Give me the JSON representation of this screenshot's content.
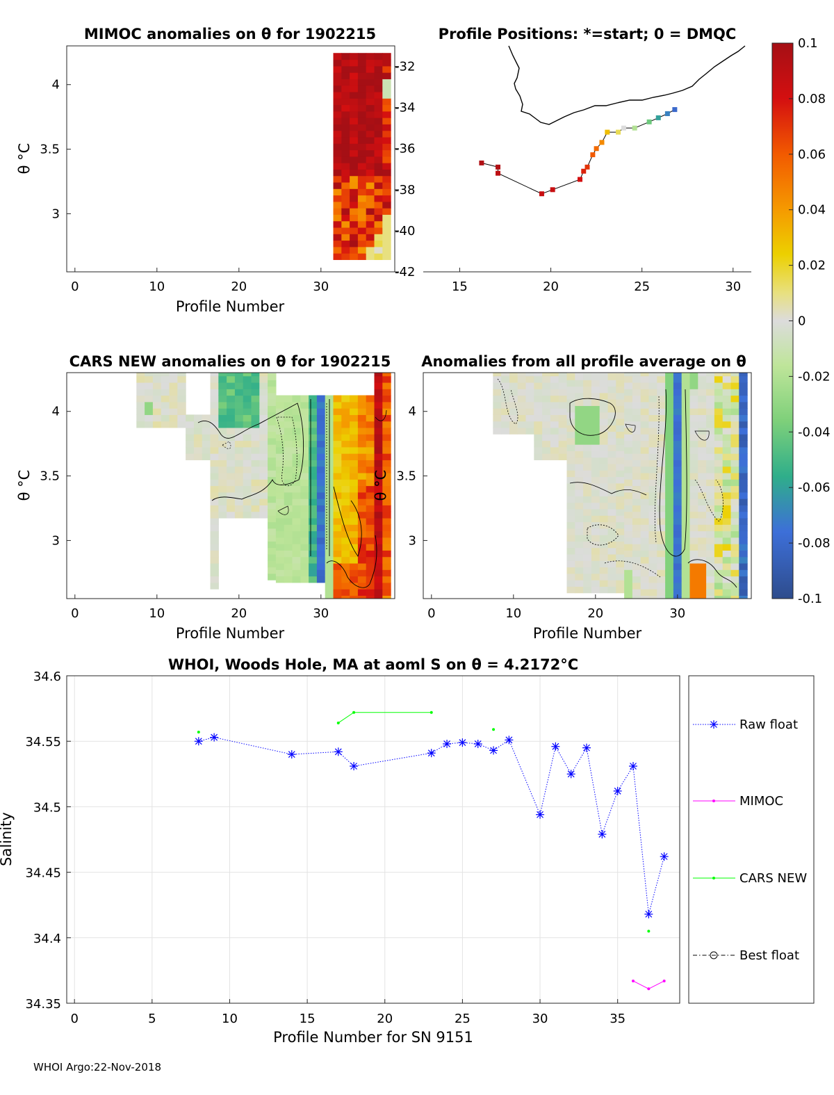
{
  "chart_data": [
    {
      "type": "heatmap",
      "title": "MIMOC anomalies on θ  for 1902215",
      "xlabel": "Profile Number",
      "ylabel": "θ °C",
      "xlim": [
        -1,
        39
      ],
      "ylim": [
        2.55,
        4.3
      ],
      "xticks": [
        0,
        10,
        20,
        30
      ],
      "yticks": [
        3,
        3.5,
        4
      ],
      "profile_range": [
        32,
        38
      ],
      "theta_range": [
        2.67,
        4.22
      ]
    },
    {
      "type": "scatter",
      "title": "Profile Positions: *=start; 0 = DMQC",
      "xlim": [
        13,
        31
      ],
      "ylim": [
        -42,
        -31
      ],
      "xticks": [
        15,
        20,
        25,
        30
      ],
      "yticks": [
        -32,
        -34,
        -36,
        -38,
        -40,
        -42
      ],
      "track": [
        {
          "lon": 16.2,
          "lat": -36.7,
          "v": 0.095
        },
        {
          "lon": 17.1,
          "lat": -36.9,
          "v": 0.095
        },
        {
          "lon": 17.1,
          "lat": -37.2,
          "v": 0.09
        },
        {
          "lon": 19.5,
          "lat": -38.2,
          "v": 0.085
        },
        {
          "lon": 20.1,
          "lat": -38.0,
          "v": 0.085
        },
        {
          "lon": 21.6,
          "lat": -37.5,
          "v": 0.08
        },
        {
          "lon": 21.8,
          "lat": -37.1,
          "v": 0.075
        },
        {
          "lon": 22.0,
          "lat": -36.9,
          "v": 0.07
        },
        {
          "lon": 22.3,
          "lat": -36.3,
          "v": 0.06
        },
        {
          "lon": 22.5,
          "lat": -36.0,
          "v": 0.055
        },
        {
          "lon": 22.8,
          "lat": -35.7,
          "v": 0.045
        },
        {
          "lon": 23.1,
          "lat": -35.2,
          "v": 0.03
        },
        {
          "lon": 23.7,
          "lat": -35.2,
          "v": 0.015
        },
        {
          "lon": 24.0,
          "lat": -35.0,
          "v": 0.0
        },
        {
          "lon": 24.6,
          "lat": -35.0,
          "v": -0.02
        },
        {
          "lon": 25.4,
          "lat": -34.7,
          "v": -0.04
        },
        {
          "lon": 25.9,
          "lat": -34.5,
          "v": -0.06
        },
        {
          "lon": 26.4,
          "lat": -34.3,
          "v": -0.07
        },
        {
          "lon": 26.8,
          "lat": -34.1,
          "v": -0.08
        }
      ]
    },
    {
      "type": "heatmap",
      "title": "CARS NEW anomalies on θ for 1902215",
      "xlabel": "Profile Number",
      "ylabel": "θ °C",
      "xlim": [
        -1,
        39
      ],
      "ylim": [
        2.55,
        4.3
      ],
      "xticks": [
        0,
        10,
        20,
        30
      ],
      "yticks": [
        3,
        3.5,
        4
      ]
    },
    {
      "type": "heatmap",
      "title": "Anomalies from all profile average on θ",
      "xlabel": "Profile Number",
      "ylabel": "θ °C",
      "xlim": [
        -1,
        39
      ],
      "ylim": [
        2.55,
        4.3
      ],
      "xticks": [
        0,
        10,
        20,
        30
      ],
      "yticks": [
        3,
        3.5,
        4
      ]
    },
    {
      "type": "colorbar",
      "range": [
        -0.1,
        0.1
      ],
      "ticks": [
        "0.1",
        "0.08",
        "0.06",
        "0.04",
        "0.02",
        "0",
        "-0.02",
        "-0.04",
        "-0.06",
        "-0.08",
        "-0.1"
      ]
    },
    {
      "type": "line",
      "title": "WHOI, Woods Hole, MA at aoml S on θ = 4.2172°C",
      "xlabel": "Profile Number for SN 9151",
      "ylabel": "Salinity",
      "xlim": [
        -0.5,
        39
      ],
      "ylim": [
        34.35,
        34.6
      ],
      "xticks": [
        0,
        5,
        10,
        15,
        20,
        25,
        30,
        35
      ],
      "yticks": [
        "34.6",
        "34.55",
        "34.5",
        "34.45",
        "34.4",
        "34.35"
      ],
      "grid": true,
      "legend": [
        "Raw float",
        "MIMOC",
        "CARS NEW",
        "Best float"
      ],
      "series": [
        {
          "name": "Raw float",
          "color": "#0000ff",
          "x": [
            8,
            9,
            14,
            17,
            18,
            23,
            24,
            25,
            26,
            27,
            28,
            30,
            31,
            32,
            33,
            34,
            35,
            36,
            37,
            38
          ],
          "y": [
            34.55,
            34.553,
            34.54,
            34.542,
            34.531,
            34.541,
            34.548,
            34.549,
            34.548,
            34.543,
            34.551,
            34.494,
            34.546,
            34.525,
            34.545,
            34.479,
            34.512,
            34.531,
            34.418,
            34.462
          ]
        },
        {
          "name": "MIMOC",
          "color": "#ff00ff",
          "x": [
            36,
            37,
            38
          ],
          "y": [
            34.367,
            34.361,
            34.367
          ]
        },
        {
          "name": "CARS NEW",
          "color": "#00ff00",
          "x": [
            8,
            17,
            18,
            23,
            27,
            37
          ],
          "y": [
            34.557,
            34.564,
            34.572,
            34.572,
            34.559,
            34.405
          ],
          "segments": [
            [
              17,
              18,
              23
            ]
          ]
        },
        {
          "name": "Best float",
          "color": "#000000",
          "x": [],
          "y": []
        }
      ]
    }
  ],
  "footer": "WHOI Argo:22-Nov-2018"
}
